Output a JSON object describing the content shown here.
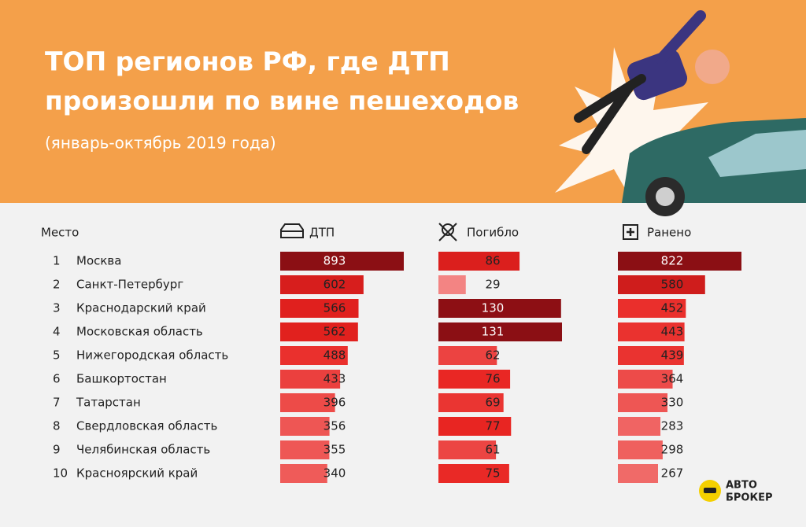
{
  "header": {
    "title_lines": [
      "ТОП регионов РФ, где ДТП",
      "произошли по вине пешеходов"
    ],
    "subtitle": "(январь-октябрь 2019 года)"
  },
  "table": {
    "rank_header": "Место",
    "columns": [
      "ДТП",
      "Погибло",
      "Ранено"
    ],
    "rows": [
      {
        "rank": 1,
        "region": "Москва",
        "values": [
          893,
          86,
          822
        ]
      },
      {
        "rank": 2,
        "region": "Санкт-Петербург",
        "values": [
          602,
          29,
          580
        ]
      },
      {
        "rank": 3,
        "region": "Краснодарский край",
        "values": [
          566,
          130,
          452
        ]
      },
      {
        "rank": 4,
        "region": "Московская область",
        "values": [
          562,
          131,
          443
        ]
      },
      {
        "rank": 5,
        "region": "Нижегородская область",
        "values": [
          488,
          62,
          439
        ]
      },
      {
        "rank": 6,
        "region": "Башкортостан",
        "values": [
          433,
          76,
          364
        ]
      },
      {
        "rank": 7,
        "region": "Татарстан",
        "values": [
          396,
          69,
          330
        ]
      },
      {
        "rank": 8,
        "region": "Свердловская область",
        "values": [
          356,
          77,
          283
        ]
      },
      {
        "rank": 9,
        "region": "Челябинская область",
        "values": [
          355,
          61,
          298
        ]
      },
      {
        "rank": 10,
        "region": "Красноярский край",
        "values": [
          340,
          75,
          267
        ]
      }
    ]
  },
  "logo": [
    "АВТО",
    "БРОКЕР"
  ]
}
